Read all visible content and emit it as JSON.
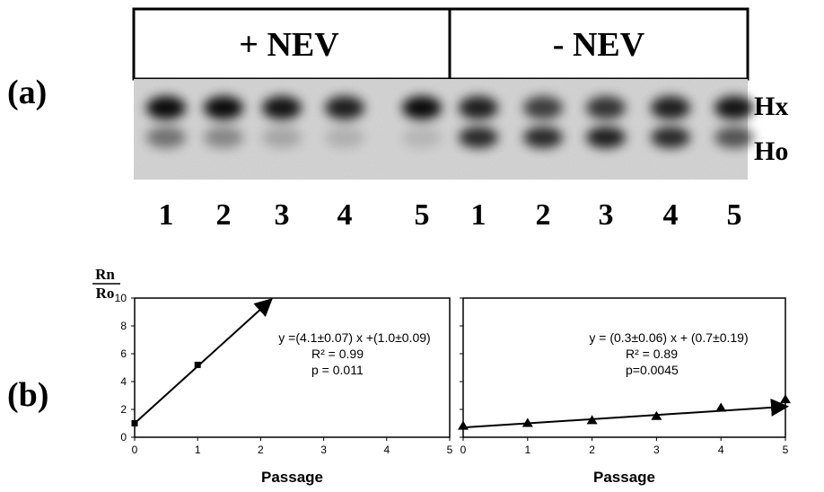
{
  "panel_a": {
    "label": "(a)",
    "headers": [
      "+ NEV",
      "- NEV"
    ],
    "band_labels": [
      "Hx",
      "Ho"
    ],
    "lane_numbers": [
      "1",
      "2",
      "3",
      "4",
      "5",
      "1",
      "2",
      "3",
      "4",
      "5"
    ]
  },
  "panel_b": {
    "label": "(b)",
    "y_axis_fraction": {
      "numerator": "Rn",
      "denominator": "Ro"
    }
  },
  "chart_data": [
    {
      "type": "scatter",
      "xlabel": "Passage",
      "ylabel": "Rn/Ro",
      "xlim": [
        0,
        5
      ],
      "ylim": [
        0,
        10
      ],
      "xticks": [
        "0",
        "1",
        "2",
        "3",
        "4",
        "5"
      ],
      "yticks": [
        "0",
        "2",
        "4",
        "6",
        "8",
        "10"
      ],
      "points": [
        {
          "x": 0,
          "y": 1.0
        },
        {
          "x": 1,
          "y": 5.2
        }
      ],
      "marker": "square",
      "fit": {
        "slope": 4.1,
        "intercept": 1.0,
        "x_end": 2.15
      },
      "annotations": [
        "y =(4.1±0.07) x +(1.0±0.09)",
        "R² = 0.99",
        "p = 0.011"
      ]
    },
    {
      "type": "scatter",
      "xlabel": "Passage",
      "ylabel": "Rn/Ro",
      "xlim": [
        0,
        5
      ],
      "ylim": [
        0,
        10
      ],
      "xticks": [
        "0",
        "1",
        "2",
        "3",
        "4",
        "5"
      ],
      "yticks": [],
      "points": [
        {
          "x": 0,
          "y": 0.8
        },
        {
          "x": 1,
          "y": 1.0
        },
        {
          "x": 2,
          "y": 1.2
        },
        {
          "x": 3,
          "y": 1.5
        },
        {
          "x": 4,
          "y": 2.1
        },
        {
          "x": 5,
          "y": 2.7
        }
      ],
      "marker": "triangle",
      "fit": {
        "slope": 0.3,
        "intercept": 0.7,
        "x_end": 5.0
      },
      "annotations": [
        "y = (0.3±0.06) x + (0.7±0.19)",
        "R² = 0.89",
        "p=0.0045"
      ]
    }
  ]
}
